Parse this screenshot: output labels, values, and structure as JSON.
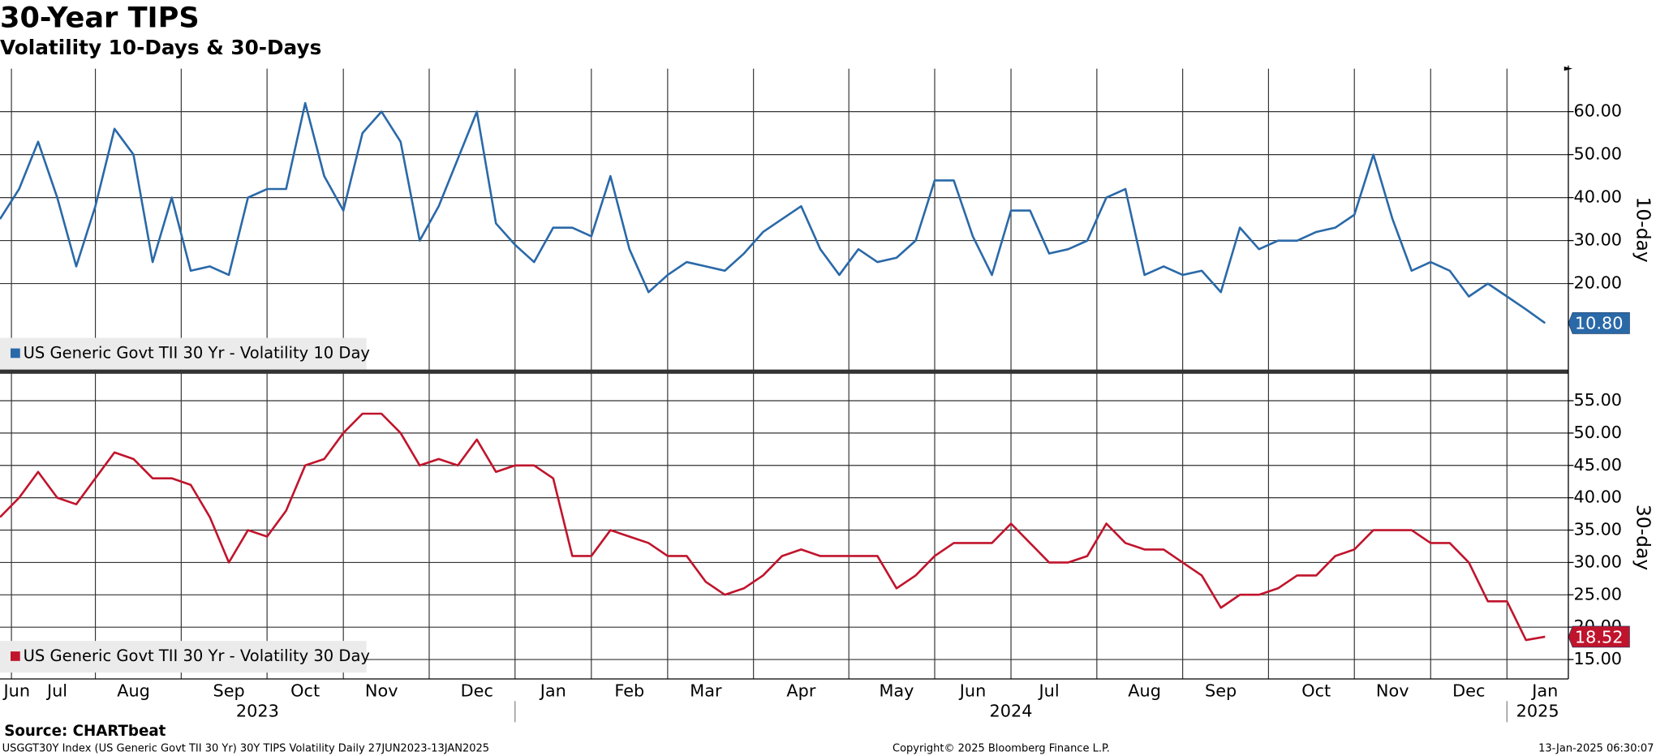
{
  "title": "30-Year TIPS",
  "subtitle": "Volatility 10-Days & 30-Days",
  "source": "Source: CHARTbeat",
  "footer": {
    "left": "USGGT30Y Index (US Generic Govt TII 30 Yr) 30Y TIPS Volatility  Daily 27JUN2023-13JAN2025",
    "center": "Copyright© 2025 Bloomberg Finance L.P.",
    "right": "13-Jan-2025 06:30:07"
  },
  "chart_data": [
    {
      "type": "line",
      "y_axis_label": "10-day",
      "ylim": [
        0,
        70
      ],
      "yticks": [
        {
          "value": 20,
          "label": "20.00"
        },
        {
          "value": 30,
          "label": "30.00"
        },
        {
          "value": 40,
          "label": "40.00"
        },
        {
          "value": 50,
          "label": "50.00"
        },
        {
          "value": 60,
          "label": "60.00"
        }
      ],
      "grid": true,
      "legend": "lower left",
      "series": [
        {
          "name": "US Generic Govt TII 30 Yr - Volatility 10 Day",
          "color": "#2a69a8",
          "values": [
            35,
            42,
            53,
            40,
            24,
            38,
            56,
            50,
            25,
            40,
            23,
            24,
            22,
            40,
            42,
            42,
            62,
            45,
            37,
            55,
            60,
            53,
            30,
            38,
            49,
            60,
            34,
            29,
            25,
            33,
            33,
            31,
            45,
            28,
            18,
            22,
            25,
            24,
            23,
            27,
            32,
            35,
            38,
            28,
            22,
            28,
            25,
            26,
            30,
            44,
            44,
            31,
            22,
            37,
            37,
            27,
            28,
            30,
            40,
            42,
            22,
            24,
            22,
            23,
            18,
            33,
            28,
            30,
            30,
            32,
            33,
            36,
            50,
            35,
            23,
            25,
            23,
            17,
            20,
            17,
            14,
            10.8
          ],
          "value_labels": [
            null,
            null,
            null,
            null,
            null,
            null,
            null,
            null,
            null,
            null,
            null,
            null,
            null,
            null,
            null,
            null,
            null,
            null,
            null,
            null,
            null,
            null,
            null,
            null,
            null,
            null,
            null,
            null,
            null,
            null,
            null,
            null,
            null,
            null,
            null,
            null,
            null,
            null,
            null,
            null,
            null,
            null,
            null,
            null,
            null,
            null,
            null,
            null,
            null,
            null,
            null,
            null,
            null,
            null,
            null,
            null,
            null,
            null,
            null,
            null,
            null,
            null,
            null,
            null,
            null,
            null,
            null,
            null,
            null,
            null,
            null,
            null,
            null,
            null,
            null,
            null,
            null,
            null,
            null,
            null,
            null,
            "10.80"
          ]
        }
      ]
    },
    {
      "type": "line",
      "y_axis_label": "30-day",
      "ylim": [
        12,
        59
      ],
      "yticks": [
        {
          "value": 15,
          "label": "15.00"
        },
        {
          "value": 20,
          "label": "20.00"
        },
        {
          "value": 25,
          "label": "25.00"
        },
        {
          "value": 30,
          "label": "30.00"
        },
        {
          "value": 35,
          "label": "35.00"
        },
        {
          "value": 40,
          "label": "40.00"
        },
        {
          "value": 45,
          "label": "45.00"
        },
        {
          "value": 50,
          "label": "50.00"
        },
        {
          "value": 55,
          "label": "55.00"
        }
      ],
      "grid": true,
      "legend": "lower left",
      "categories": [
        "Jun",
        null,
        null,
        "Jul",
        null,
        null,
        null,
        "Aug",
        null,
        null,
        null,
        null,
        "Sep",
        null,
        null,
        null,
        "Oct",
        null,
        null,
        null,
        "Nov",
        null,
        null,
        null,
        null,
        "Dec",
        null,
        null,
        null,
        "Jan",
        null,
        null,
        null,
        "Feb",
        null,
        null,
        null,
        "Mar",
        null,
        null,
        null,
        null,
        "Apr",
        null,
        null,
        null,
        null,
        "May",
        null,
        null,
        null,
        "Jun",
        null,
        null,
        null,
        "Jul",
        null,
        null,
        null,
        null,
        "Aug",
        null,
        null,
        null,
        "Sep",
        null,
        null,
        null,
        null,
        "Oct",
        null,
        null,
        null,
        "Nov",
        null,
        null,
        null,
        "Dec",
        null,
        null,
        null,
        "Jan"
      ],
      "years": [
        "2023",
        "2024",
        "2025"
      ],
      "series": [
        {
          "name": "US Generic Govt TII 30 Yr - Volatility 30 Day",
          "color": "#c0142c",
          "values": [
            37,
            40,
            44,
            40,
            39,
            43,
            47,
            46,
            43,
            43,
            42,
            37,
            30,
            35,
            34,
            38,
            45,
            46,
            50,
            53,
            53,
            50,
            45,
            46,
            45,
            49,
            44,
            45,
            45,
            43,
            31,
            31,
            35,
            34,
            33,
            31,
            31,
            27,
            25,
            26,
            28,
            31,
            32,
            31,
            31,
            31,
            31,
            26,
            28,
            31,
            33,
            33,
            33,
            36,
            33,
            30,
            30,
            31,
            36,
            33,
            32,
            32,
            30,
            28,
            23,
            25,
            25,
            26,
            28,
            28,
            31,
            32,
            35,
            35,
            35,
            33,
            33,
            30,
            24,
            24,
            18,
            18.52
          ],
          "value_labels": [
            null,
            null,
            null,
            null,
            null,
            null,
            null,
            null,
            null,
            null,
            null,
            null,
            null,
            null,
            null,
            null,
            null,
            null,
            null,
            null,
            null,
            null,
            null,
            null,
            null,
            null,
            null,
            null,
            null,
            null,
            null,
            null,
            null,
            null,
            null,
            null,
            null,
            null,
            null,
            null,
            null,
            null,
            null,
            null,
            null,
            null,
            null,
            null,
            null,
            null,
            null,
            null,
            null,
            null,
            null,
            null,
            null,
            null,
            null,
            null,
            null,
            null,
            null,
            null,
            null,
            null,
            null,
            null,
            null,
            null,
            null,
            null,
            null,
            null,
            null,
            null,
            null,
            null,
            null,
            null,
            null,
            "18.52"
          ]
        }
      ]
    }
  ]
}
